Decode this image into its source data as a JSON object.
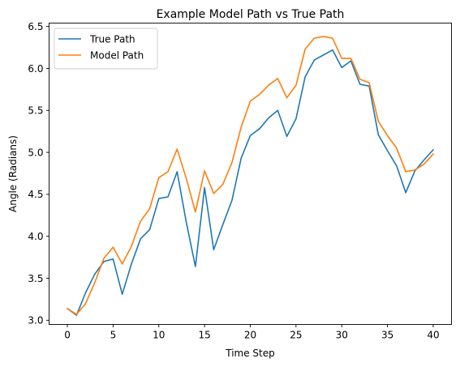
{
  "chart_data": {
    "type": "line",
    "title": "Example Model Path vs True Path",
    "xlabel": "Time Step",
    "ylabel": "Angle (Radians)",
    "xlim": [
      -2,
      42
    ],
    "ylim": [
      2.95,
      6.54
    ],
    "xticks": [
      0,
      5,
      10,
      15,
      20,
      25,
      30,
      35,
      40
    ],
    "yticks": [
      3.0,
      3.5,
      4.0,
      4.5,
      5.0,
      5.5,
      6.0,
      6.5
    ],
    "ytick_labels": [
      "3.0",
      "3.5",
      "4.0",
      "4.5",
      "5.0",
      "5.5",
      "6.0",
      "6.5"
    ],
    "legend_position": "upper-left",
    "grid": false,
    "x": [
      0,
      1,
      2,
      3,
      4,
      5,
      6,
      7,
      8,
      9,
      10,
      11,
      12,
      13,
      14,
      15,
      16,
      17,
      18,
      19,
      20,
      21,
      22,
      23,
      24,
      25,
      26,
      27,
      28,
      29,
      30,
      31,
      32,
      33,
      34,
      35,
      36,
      37,
      38,
      39,
      40
    ],
    "series": [
      {
        "name": "True Path",
        "color": "#1f77b4",
        "values": [
          3.14,
          3.06,
          3.33,
          3.55,
          3.7,
          3.73,
          3.31,
          3.67,
          3.97,
          4.08,
          4.45,
          4.47,
          4.77,
          4.17,
          3.64,
          4.58,
          3.84,
          4.14,
          4.43,
          4.93,
          5.2,
          5.28,
          5.41,
          5.5,
          5.19,
          5.4,
          5.9,
          6.1,
          6.16,
          6.22,
          6.01,
          6.09,
          5.81,
          5.79,
          5.21,
          5.02,
          4.84,
          4.52,
          4.78,
          4.91,
          5.03
        ]
      },
      {
        "name": "Model Path",
        "color": "#ff7f0e",
        "values": [
          3.14,
          3.07,
          3.2,
          3.45,
          3.74,
          3.87,
          3.67,
          3.88,
          4.18,
          4.33,
          4.7,
          4.77,
          5.04,
          4.69,
          4.29,
          4.78,
          4.51,
          4.62,
          4.88,
          5.3,
          5.61,
          5.69,
          5.8,
          5.88,
          5.65,
          5.8,
          6.23,
          6.36,
          6.38,
          6.36,
          6.12,
          6.12,
          5.87,
          5.83,
          5.37,
          5.2,
          5.05,
          4.77,
          4.79,
          4.86,
          4.98
        ]
      }
    ]
  }
}
